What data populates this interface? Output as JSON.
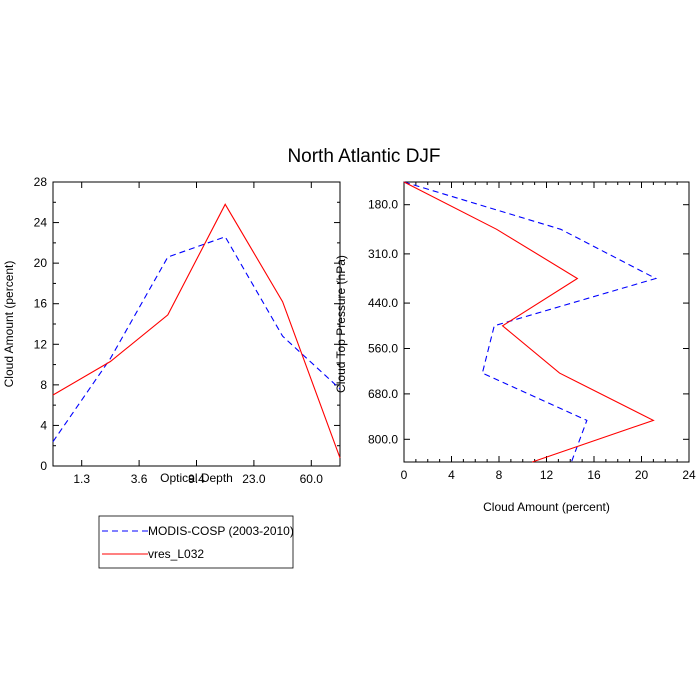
{
  "figure": {
    "title": "North Atlantic DJF"
  },
  "colors": {
    "modis": "#0000ff",
    "model": "#ff0000",
    "axis": "#000000"
  },
  "legend": {
    "placement": "bottom-left",
    "entries": [
      {
        "label": "MODIS-COSP (2003-2010)",
        "color": "#0000ff",
        "style": "dashed"
      },
      {
        "label": "vres_L032",
        "color": "#ff0000",
        "style": "solid"
      }
    ]
  },
  "chart_data": [
    {
      "type": "line",
      "xlabel": "Optical Depth",
      "ylabel": "Cloud Amount (percent)",
      "x_tick_labels": [
        "1.3",
        "3.6",
        "9.4",
        "23.0",
        "60.0"
      ],
      "x_categories": 6,
      "ylim": [
        0,
        28
      ],
      "y_ticks": [
        0,
        4,
        8,
        12,
        16,
        20,
        24,
        28
      ],
      "y_tick_labels": [
        "0",
        "4",
        "8",
        "12",
        "16",
        "20",
        "24",
        "28"
      ],
      "series": [
        {
          "name": "MODIS-COSP (2003-2010)",
          "x": [
            0,
            1,
            2,
            3,
            4,
            5
          ],
          "y": [
            2.4,
            10.6,
            20.6,
            22.6,
            12.8,
            7.6
          ]
        },
        {
          "name": "vres_L032",
          "x": [
            0,
            1,
            2,
            3,
            4,
            5
          ],
          "y": [
            7.0,
            10.3,
            14.9,
            25.8,
            16.2,
            0.8
          ]
        }
      ]
    },
    {
      "type": "line",
      "xlabel": "Cloud Amount (percent)",
      "ylabel": "Cloud Top Pressure (hPa)",
      "xlim": [
        0,
        24
      ],
      "x_ticks": [
        0,
        4,
        8,
        12,
        16,
        20,
        24
      ],
      "x_tick_labels": [
        "0",
        "4",
        "8",
        "12",
        "16",
        "20",
        "24"
      ],
      "y_range": [
        120,
        860
      ],
      "y_reversed": true,
      "y_ticks": [
        180,
        310,
        440,
        560,
        680,
        800
      ],
      "y_tick_labels": [
        "180.0",
        "310.0",
        "440.0",
        "560.0",
        "680.0",
        "800.0"
      ],
      "series": [
        {
          "name": "MODIS-COSP (2003-2010)",
          "x": [
            0,
            13.2,
            21.2,
            7.6,
            6.6,
            15.4,
            14.1
          ],
          "y": [
            120,
            245,
            375,
            500,
            625,
            750,
            860
          ]
        },
        {
          "name": "vres_L032",
          "x": [
            0,
            7.8,
            14.6,
            8.3,
            13.1,
            21.0,
            10.8
          ],
          "y": [
            120,
            245,
            375,
            500,
            625,
            750,
            860
          ]
        }
      ]
    }
  ]
}
